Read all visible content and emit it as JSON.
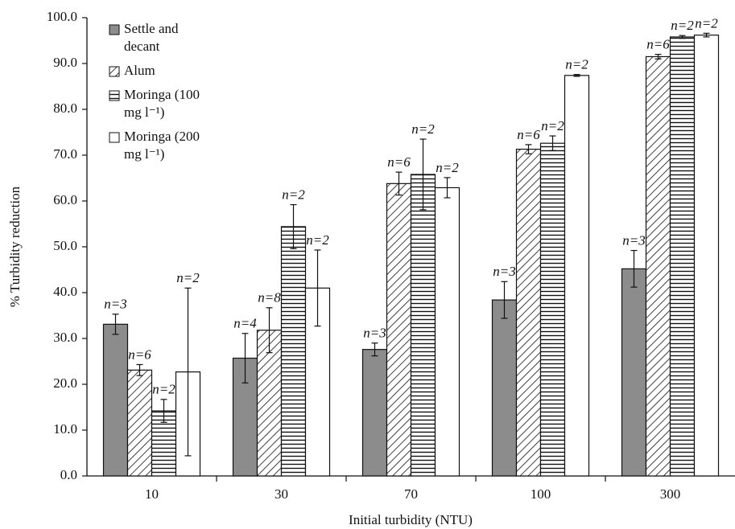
{
  "chart_data": {
    "type": "bar",
    "x_label": "Initial turbidity (NTU)",
    "y_label": "% Turbidity reduction",
    "categories": [
      "10",
      "30",
      "70",
      "100",
      "300"
    ],
    "ylim": [
      0,
      100
    ],
    "yticks": [
      {
        "value": 0,
        "label": "0.0"
      },
      {
        "value": 10,
        "label": "10.0"
      },
      {
        "value": 20,
        "label": "20.0"
      },
      {
        "value": 30,
        "label": "30.0"
      },
      {
        "value": 40,
        "label": "40.0"
      },
      {
        "value": 50,
        "label": "50.0"
      },
      {
        "value": 60,
        "label": "60.0"
      },
      {
        "value": 70,
        "label": "70.0"
      },
      {
        "value": 80,
        "label": "80.0"
      },
      {
        "value": 90,
        "label": "90.0"
      },
      {
        "value": 100,
        "label": "100.0"
      }
    ],
    "legend": "upper left",
    "series": [
      {
        "name": "Settle and decant",
        "color": "#8c8c8c",
        "hatch": "none",
        "values": [
          33.1,
          25.7,
          27.6,
          38.4,
          45.2
        ],
        "errors": [
          2.2,
          5.4,
          1.4,
          4.0,
          4.0
        ],
        "n_labels": [
          "n=3",
          "n=4",
          "n=3",
          "n=3",
          "n=3"
        ]
      },
      {
        "name": "Alum",
        "color": "#ffffff",
        "hatch": "diagonal",
        "values": [
          23.1,
          31.8,
          63.8,
          71.3,
          91.5
        ],
        "errors": [
          1.2,
          4.9,
          2.5,
          1.0,
          0.5
        ],
        "n_labels": [
          "n=6",
          "n=8",
          "n=6",
          "n=6",
          "n=6"
        ]
      },
      {
        "name": "Moringa (100 mg l⁻¹)",
        "color": "#ffffff",
        "hatch": "horizontal",
        "values": [
          14.2,
          54.4,
          65.8,
          72.6,
          95.8
        ],
        "errors": [
          2.5,
          4.8,
          7.7,
          1.6,
          0.3
        ],
        "n_labels": [
          "n=2",
          "n=2",
          "n=2",
          "n=2",
          "n=2"
        ]
      },
      {
        "name": "Moringa (200 mg l⁻¹)",
        "color": "#ffffff",
        "hatch": "none",
        "values": [
          22.7,
          41.0,
          62.9,
          87.4,
          96.2
        ],
        "errors": [
          18.3,
          8.3,
          2.2,
          0.2,
          0.4
        ],
        "n_labels": [
          "n=2",
          "n=2",
          "n=2",
          "n=2",
          "n=2"
        ]
      }
    ]
  }
}
